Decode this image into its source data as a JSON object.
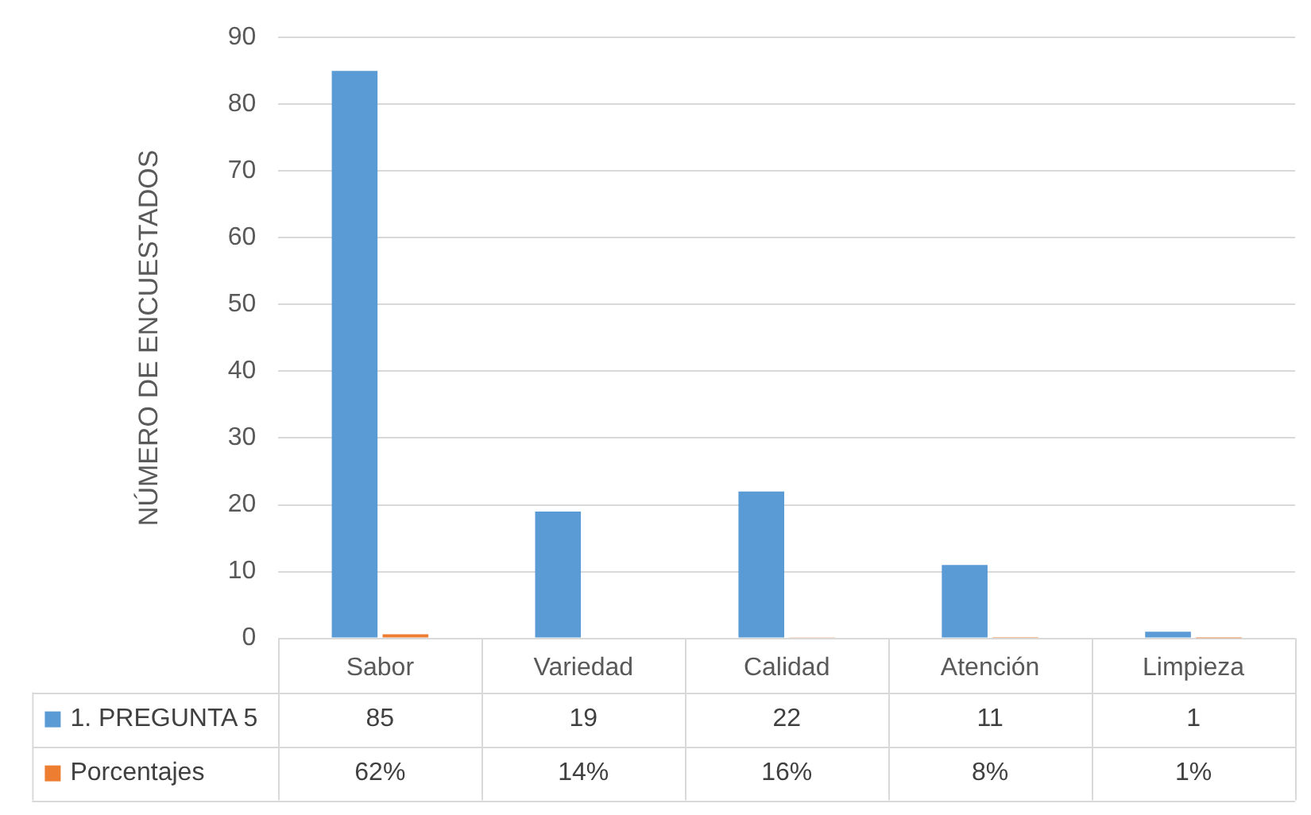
{
  "chart_data": {
    "type": "bar",
    "ylabel": "NÚMERO DE ENCUESTADOS",
    "categories": [
      "Sabor",
      "Variedad",
      "Calidad",
      "Atención",
      "Limpieza"
    ],
    "series": [
      {
        "name": "1. PREGUNTA 5",
        "color": "#5b9bd5",
        "values": [
          85,
          19,
          22,
          11,
          1
        ],
        "value_labels": [
          "85",
          "19",
          "22",
          "11",
          "1"
        ]
      },
      {
        "name": "Porcentajes",
        "color": "#ed7d31",
        "values": [
          0.62,
          0.14,
          0.16,
          0.08,
          0.01
        ],
        "value_labels": [
          "62%",
          "14%",
          "16%",
          "8%",
          "1%"
        ]
      }
    ],
    "ylim": [
      0,
      90
    ],
    "yticks": [
      0,
      10,
      20,
      30,
      40,
      50,
      60,
      70,
      80,
      90
    ],
    "grid": "y",
    "legend": "bottom"
  }
}
